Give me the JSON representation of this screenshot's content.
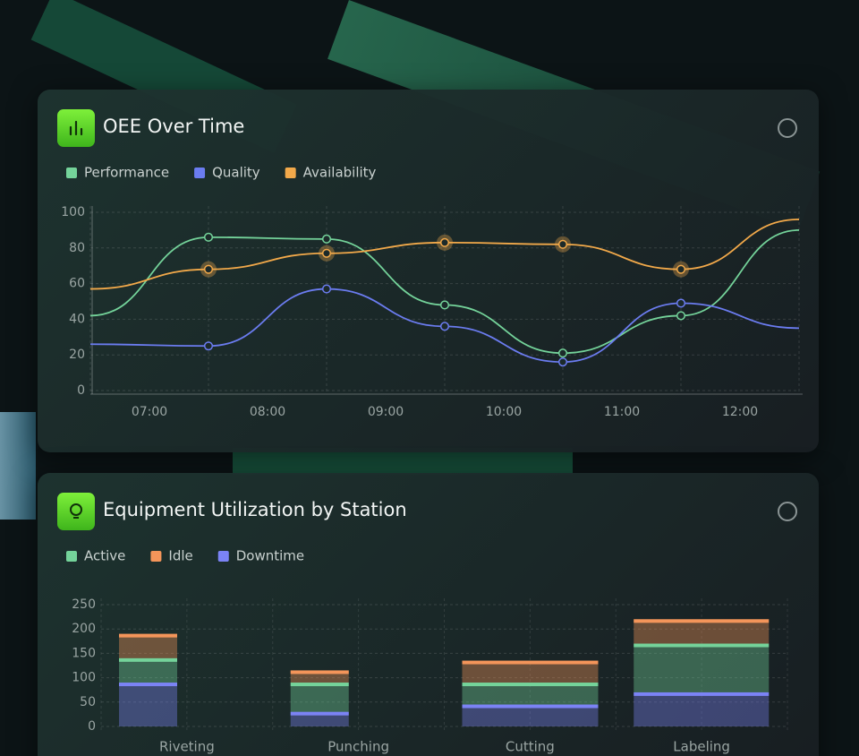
{
  "chart_data": [
    {
      "type": "line",
      "title": "OEE Over Time",
      "x": [
        6.5,
        7.5,
        8.5,
        9.5,
        10.5,
        11.5,
        12.5
      ],
      "xlim": [
        6.5,
        12.5
      ],
      "xticks": [
        {
          "value": 7,
          "label": "07:00"
        },
        {
          "value": 8,
          "label": "08:00"
        },
        {
          "value": 9,
          "label": "09:00"
        },
        {
          "value": 10,
          "label": "10:00"
        },
        {
          "value": 11,
          "label": "11:00"
        },
        {
          "value": 12,
          "label": "12:00"
        }
      ],
      "ylim": [
        0,
        100
      ],
      "yticks": [
        0,
        20,
        40,
        60,
        80,
        100
      ],
      "grid": true,
      "series": [
        {
          "name": "Performance",
          "color": "#74d39a",
          "values": [
            42,
            86,
            85,
            48,
            21,
            42,
            90
          ]
        },
        {
          "name": "Quality",
          "color": "#6b7cf0",
          "values": [
            26,
            25,
            57,
            36,
            16,
            49,
            35
          ]
        },
        {
          "name": "Availability",
          "color": "#f2a94a",
          "values": [
            57,
            68,
            77,
            83,
            82,
            68,
            96
          ]
        }
      ]
    },
    {
      "type": "stacked-bar",
      "title": "Equipment Utilization by Station",
      "categories": [
        "Riveting",
        "Punching",
        "Cutting",
        "Labeling"
      ],
      "ylim": [
        0,
        250
      ],
      "yticks": [
        0,
        50,
        100,
        150,
        200,
        250
      ],
      "grid": true,
      "series": [
        {
          "name": "Active",
          "color": "#74d39a",
          "values": [
            50,
            60,
            45,
            100
          ]
        },
        {
          "name": "Idle",
          "color": "#f4955a",
          "values": [
            50,
            25,
            45,
            50
          ]
        },
        {
          "name": "Downtime",
          "color": "#7b83f5",
          "values": [
            90,
            30,
            45,
            70
          ]
        }
      ]
    }
  ]
}
